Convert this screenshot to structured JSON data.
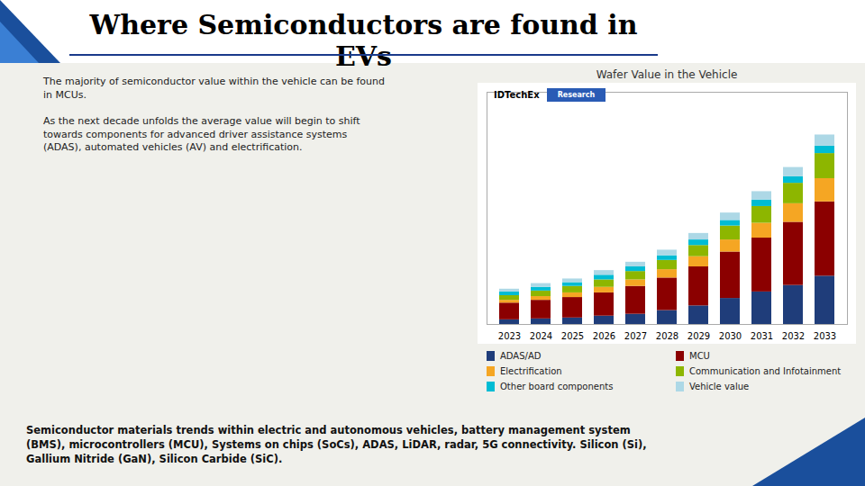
{
  "chart_data": {
    "type": "bar",
    "stacked": true,
    "title": "Where Semiconductors are found in EVs",
    "subtitle": "Wafer Value in the Vehicle",
    "annotations": [
      "The majority of semiconductor value within the vehicle can be found\nin MCUs.",
      "As the next decade unfolds the average value will begin to shift\ntowards components for advanced driver assistance systems\n(ADAS), automated vehicles (AV) and electrification.",
      "IDTechEx",
      "Research",
      "Semiconductor materials trends within electric and autonomous vehicles, battery management system\n(BMS), microcontrollers (MCU), Systems on chips (SoCs), ADAS, LiDAR, radar, 5G connectivity. Silicon (Si),\nGallium Nitride (GaN), Silicon Carbide (SiC)."
    ],
    "categories": [
      2023,
      2024,
      2025,
      2026,
      2027,
      2028,
      2029,
      2030,
      2031,
      2032,
      2033
    ],
    "series": [
      {
        "name": "ADAS/AD",
        "color": "#1f3d7a",
        "values": [
          0.05,
          0.06,
          0.07,
          0.09,
          0.11,
          0.15,
          0.2,
          0.28,
          0.35,
          0.42,
          0.52
        ]
      },
      {
        "name": "MCU",
        "color": "#8b0000",
        "values": [
          0.18,
          0.2,
          0.22,
          0.25,
          0.3,
          0.35,
          0.42,
          0.5,
          0.58,
          0.68,
          0.8
        ]
      },
      {
        "name": "Electrification",
        "color": "#f5a623",
        "values": [
          0.03,
          0.04,
          0.05,
          0.06,
          0.07,
          0.09,
          0.11,
          0.13,
          0.16,
          0.2,
          0.25
        ]
      },
      {
        "name": "Communication and Infotainment",
        "color": "#8db600",
        "values": [
          0.05,
          0.06,
          0.07,
          0.08,
          0.09,
          0.1,
          0.12,
          0.15,
          0.18,
          0.22,
          0.27
        ]
      },
      {
        "name": "Other board components",
        "color": "#00bcd4",
        "values": [
          0.04,
          0.04,
          0.04,
          0.05,
          0.05,
          0.05,
          0.06,
          0.06,
          0.07,
          0.07,
          0.08
        ]
      },
      {
        "name": "Vehicle value",
        "color": "#add8e6",
        "values": [
          0.03,
          0.04,
          0.04,
          0.05,
          0.05,
          0.06,
          0.07,
          0.08,
          0.09,
          0.1,
          0.12
        ]
      }
    ],
    "ylim": [
      0,
      2.5
    ],
    "tick_labels": "x",
    "grid": false,
    "legend": "bottom"
  }
}
